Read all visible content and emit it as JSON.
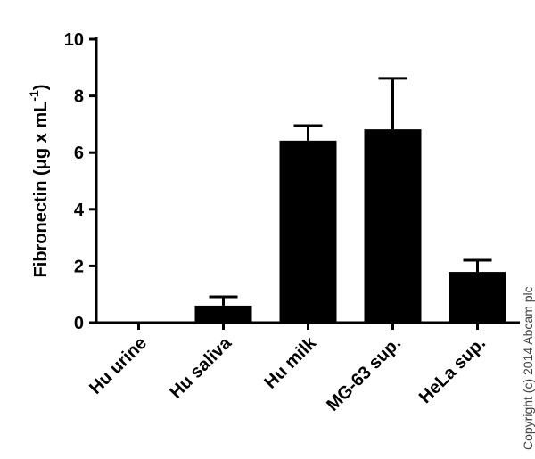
{
  "chart_data": {
    "type": "bar",
    "ylabel": "Fibronectin (μg x mL",
    "ylabel_sup": "-1",
    "ylabel_end": ")",
    "categories": [
      "Hu urine",
      "Hu saliva",
      "Hu milk",
      "MG-63 sup.",
      "HeLa sup."
    ],
    "values": [
      0,
      0.6,
      6.42,
      6.82,
      1.79
    ],
    "errors": [
      0,
      0.31,
      0.53,
      1.8,
      0.41
    ],
    "color": "#000000",
    "ylim": [
      0,
      10
    ],
    "yticks": [
      0,
      2,
      4,
      6,
      8,
      10
    ],
    "annotation": "Copyright (c) 2014 Abcam plc"
  }
}
